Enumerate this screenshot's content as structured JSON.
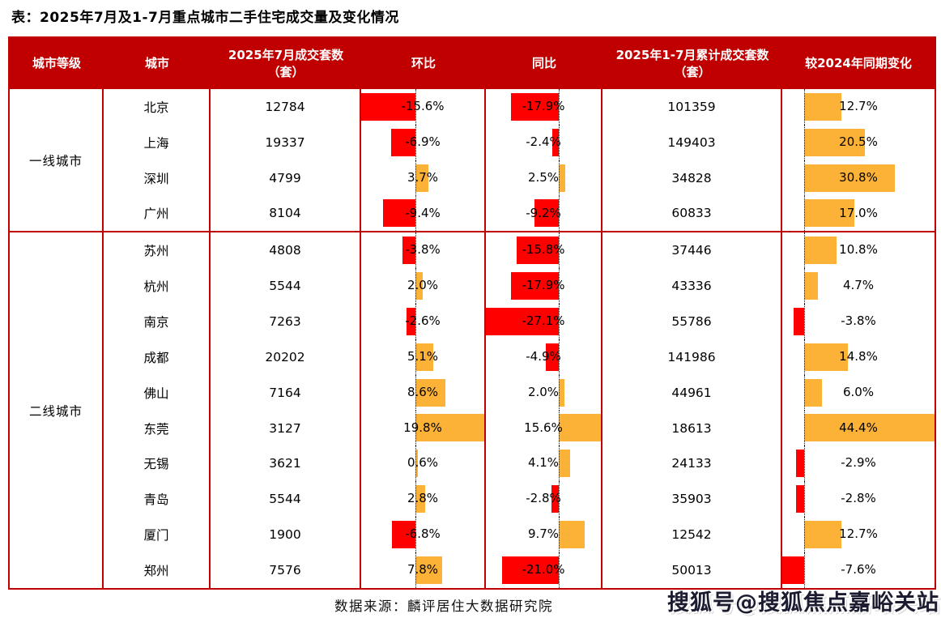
{
  "title": "表：2025年7月及1-7月重点城市二手住宅成交量及变化情况",
  "source_note": "数据来源：麟评居住大数据研究院",
  "watermark": "搜狐号@搜狐焦点嘉峪关站",
  "colors": {
    "header_bg": "#c00000",
    "border": "#c00000",
    "bar_negative": "#fe0000",
    "bar_positive": "#fbb237",
    "baseline": "#1a1a1a",
    "header_text": "#ffffff",
    "body_text": "#000000"
  },
  "chart_data": {
    "type": "table",
    "title": "表：2025年7月及1-7月重点城市二手住宅成交量及变化情况",
    "columns": [
      "城市等级",
      "城市",
      "2025年7月成交套数（套）",
      "环比",
      "同比",
      "2025年1-7月累计成交套数（套）",
      "较2024年同期变化"
    ],
    "bar_columns": [
      "环比",
      "同比",
      "较2024年同期变化"
    ],
    "bar_axis_note": "in-cell data bars; each bar column scaled to its own min..max, zero axis shown as dotted line; negative=red, positive=orange",
    "groups": [
      {
        "tier": "一线城市",
        "rows": [
          {
            "city": "北京",
            "jul_count": 12784,
            "mom_pct": -15.6,
            "yoy_pct": -17.9,
            "cum_count": 101359,
            "vs_2024_pct": 12.7
          },
          {
            "city": "上海",
            "jul_count": 19337,
            "mom_pct": -6.9,
            "yoy_pct": -2.4,
            "cum_count": 149403,
            "vs_2024_pct": 20.5
          },
          {
            "city": "深圳",
            "jul_count": 4799,
            "mom_pct": 3.7,
            "yoy_pct": 2.5,
            "cum_count": 34828,
            "vs_2024_pct": 30.8
          },
          {
            "city": "广州",
            "jul_count": 8104,
            "mom_pct": -9.4,
            "yoy_pct": -9.2,
            "cum_count": 60833,
            "vs_2024_pct": 17.0
          }
        ]
      },
      {
        "tier": "二线城市",
        "rows": [
          {
            "city": "苏州",
            "jul_count": 4808,
            "mom_pct": -3.8,
            "yoy_pct": -15.8,
            "cum_count": 37446,
            "vs_2024_pct": 10.8
          },
          {
            "city": "杭州",
            "jul_count": 5544,
            "mom_pct": 2.0,
            "yoy_pct": -17.9,
            "cum_count": 43336,
            "vs_2024_pct": 4.7
          },
          {
            "city": "南京",
            "jul_count": 7263,
            "mom_pct": -2.6,
            "yoy_pct": -27.1,
            "cum_count": 55786,
            "vs_2024_pct": -3.8
          },
          {
            "city": "成都",
            "jul_count": 20202,
            "mom_pct": 5.1,
            "yoy_pct": -4.9,
            "cum_count": 141986,
            "vs_2024_pct": 14.8
          },
          {
            "city": "佛山",
            "jul_count": 7164,
            "mom_pct": 8.6,
            "yoy_pct": 2.0,
            "cum_count": 44961,
            "vs_2024_pct": 6.0
          },
          {
            "city": "东莞",
            "jul_count": 3127,
            "mom_pct": 19.8,
            "yoy_pct": 15.6,
            "cum_count": 18613,
            "vs_2024_pct": 44.4
          },
          {
            "city": "无锡",
            "jul_count": 3621,
            "mom_pct": 0.6,
            "yoy_pct": 4.1,
            "cum_count": 24133,
            "vs_2024_pct": -2.9
          },
          {
            "city": "青岛",
            "jul_count": 5544,
            "mom_pct": 2.8,
            "yoy_pct": -2.8,
            "cum_count": 35903,
            "vs_2024_pct": -2.8
          },
          {
            "city": "厦门",
            "jul_count": 1900,
            "mom_pct": -6.8,
            "yoy_pct": 9.7,
            "cum_count": 12542,
            "vs_2024_pct": 12.7
          },
          {
            "city": "郑州",
            "jul_count": 7576,
            "mom_pct": 7.8,
            "yoy_pct": -21.0,
            "cum_count": 50013,
            "vs_2024_pct": -7.6
          }
        ]
      }
    ]
  }
}
